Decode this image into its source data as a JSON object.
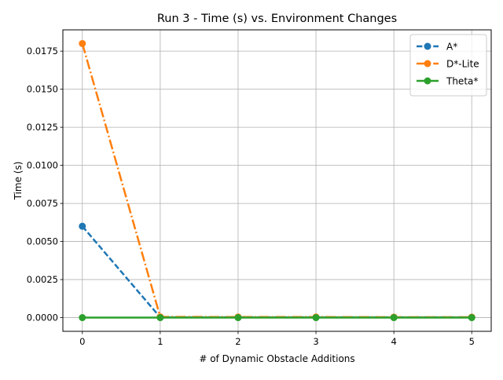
{
  "chart_data": {
    "type": "line",
    "title": "Run 3 - Time (s) vs. Environment Changes",
    "xlabel": "# of Dynamic Obstacle Additions",
    "ylabel": "Time (s)",
    "x": [
      0,
      1,
      2,
      3,
      4,
      5
    ],
    "xlim": [
      -0.25,
      5.25
    ],
    "ylim": [
      -0.0009,
      0.0189
    ],
    "xticks": [
      0,
      1,
      2,
      3,
      4,
      5
    ],
    "xtick_labels": [
      "0",
      "1",
      "2",
      "3",
      "4",
      "5"
    ],
    "yticks": [
      0.0,
      0.0025,
      0.005,
      0.0075,
      0.01,
      0.0125,
      0.015,
      0.0175
    ],
    "ytick_labels": [
      "0.0000",
      "0.0025",
      "0.0050",
      "0.0075",
      "0.0100",
      "0.0125",
      "0.0150",
      "0.0175"
    ],
    "grid": true,
    "legend_position": "top-right",
    "series": [
      {
        "name": "A*",
        "color": "#1f77b4",
        "linestyle": "dashed",
        "marker": "circle",
        "values": [
          0.006,
          2e-05,
          2e-05,
          2e-05,
          2e-05,
          2e-05
        ]
      },
      {
        "name": "D*-Lite",
        "color": "#ff7f0e",
        "linestyle": "dashdot",
        "marker": "circle",
        "values": [
          0.018,
          5e-05,
          4e-05,
          4e-05,
          3e-05,
          3e-05
        ]
      },
      {
        "name": "Theta*",
        "color": "#2ca02c",
        "linestyle": "solid",
        "marker": "circle",
        "values": [
          0.0,
          0.0,
          0.0,
          0.0,
          0.0,
          0.0
        ]
      }
    ]
  }
}
